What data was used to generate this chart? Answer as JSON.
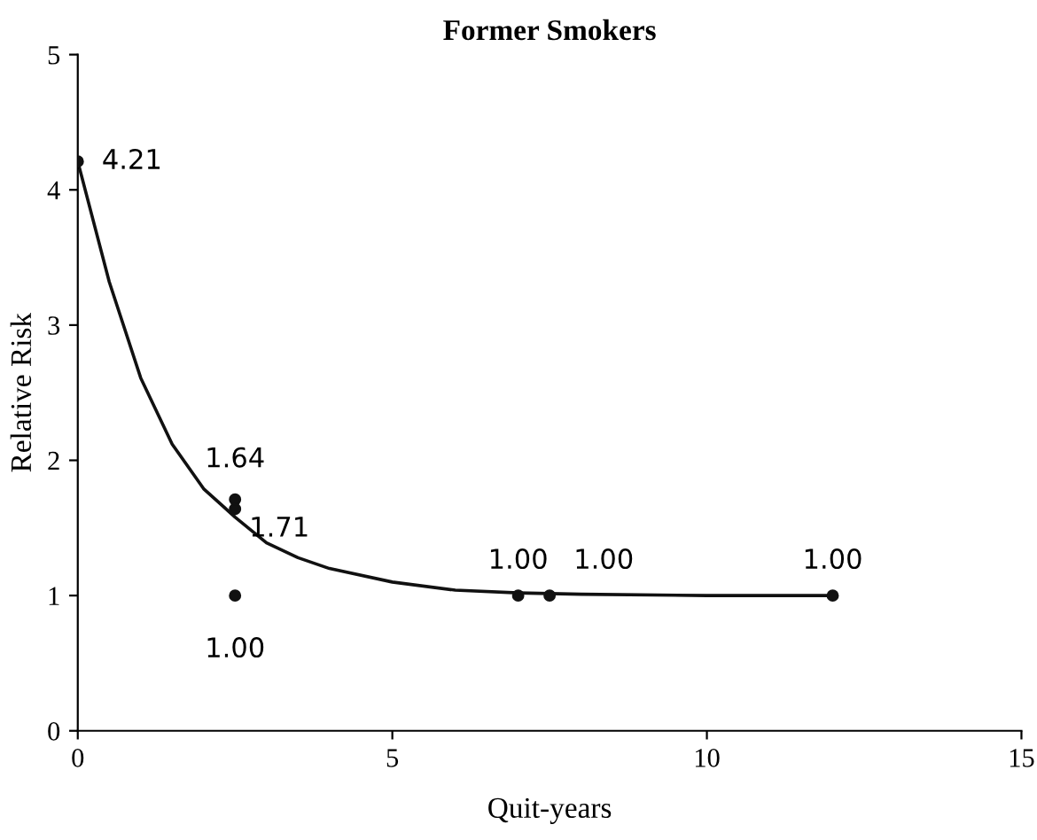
{
  "chart_data": {
    "type": "scatter",
    "title": "Former Smokers",
    "xlabel": "Quit-years",
    "ylabel": "Relative Risk",
    "xlim": [
      0,
      15
    ],
    "xticks": [
      0,
      5,
      10,
      15
    ],
    "ylim": [
      0,
      5
    ],
    "yticks": [
      0,
      1,
      2,
      3,
      4,
      5
    ],
    "grid": false,
    "legend": false,
    "series": [
      {
        "color": "#111111",
        "marker": "circle",
        "x": [
          0,
          2.5,
          2.5,
          2.5,
          7,
          7.5,
          12
        ],
        "values": [
          4.21,
          1.71,
          1.64,
          1.0,
          1.0,
          1.0,
          1.0
        ],
        "value_labels": [
          "4.21",
          "1.71",
          "1.64",
          "1.00",
          "1.00",
          "1.00",
          "1.00"
        ]
      },
      {
        "type": "line",
        "color": "#111111",
        "marker": "none",
        "x": [
          0,
          0.5,
          1,
          1.5,
          2,
          2.5,
          3,
          3.5,
          4,
          5,
          6,
          7,
          8,
          10,
          12
        ],
        "values": [
          4.21,
          3.32,
          2.61,
          2.12,
          1.79,
          1.58,
          1.39,
          1.28,
          1.2,
          1.1,
          1.04,
          1.02,
          1.01,
          1.0,
          1.0
        ]
      }
    ]
  }
}
